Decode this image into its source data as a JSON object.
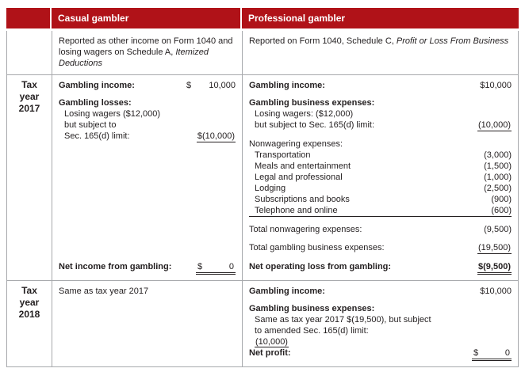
{
  "colors": {
    "header_red": "#B01218",
    "border_gray": "#A7A9AC",
    "text": "#231F20"
  },
  "header": {
    "casual": "Casual gambler",
    "professional": "Professional gambler"
  },
  "reporting": {
    "casual_normal": "Reported as other income on Form 1040 and losing wagers on Schedule A, ",
    "casual_italic": "Itemized Deductions",
    "professional_normal": "Reported on Form 1040, Schedule C, ",
    "professional_italic": "Profit or Loss From Business"
  },
  "year2017": {
    "row_label_line1": "Tax year",
    "row_label_line2": "2017",
    "casual": {
      "income_label": "Gambling income:",
      "income_currency": "$",
      "income_value": "10,000",
      "losses_label": "Gambling losses:",
      "losses_line1": "Losing wagers ($12,000)",
      "losses_line2": "but subject to",
      "losses_line3": "Sec. 165(d) limit:",
      "losses_value": "$(10,000)",
      "net_label": "Net income from gambling:",
      "net_currency": "$",
      "net_value": "0"
    },
    "professional": {
      "income_label": "Gambling income:",
      "income_value": "$10,000",
      "expenses_label": "Gambling business expenses:",
      "expenses_line1": "Losing wagers: ($12,000)",
      "expenses_line2": "but subject to Sec. 165(d) limit:",
      "expenses_value": "(10,000)",
      "nonwagering_label": "Nonwagering expenses:",
      "nonwagering_items": [
        {
          "label": "Transportation",
          "value": "(3,000)"
        },
        {
          "label": "Meals and entertainment",
          "value": "(1,500)"
        },
        {
          "label": "Legal and professional",
          "value": "(1,000)"
        },
        {
          "label": "Lodging",
          "value": "(2,500)"
        },
        {
          "label": "Subscriptions and books",
          "value": "(900)"
        },
        {
          "label": "Telephone and online",
          "value": "(600)"
        }
      ],
      "total_nonwagering_label": "Total nonwagering expenses:",
      "total_nonwagering_value": "(9,500)",
      "total_expenses_label": "Total gambling business expenses:",
      "total_expenses_value": "(19,500)",
      "net_label": "Net operating loss from gambling:",
      "net_value": "$(9,500)"
    }
  },
  "year2018": {
    "row_label_line1": "Tax year",
    "row_label_line2": "2018",
    "casual_text": "Same as tax year 2017",
    "professional": {
      "income_label": "Gambling income:",
      "income_value": "$10,000",
      "expenses_label": "Gambling business expenses:",
      "expenses_line1": "Same as tax year 2017 $(19,500), but subject",
      "expenses_line2": "to amended Sec. 165(d) limit:",
      "expenses_value": "(10,000)",
      "net_label": "Net profit:",
      "net_currency": "$",
      "net_value": "0"
    }
  }
}
